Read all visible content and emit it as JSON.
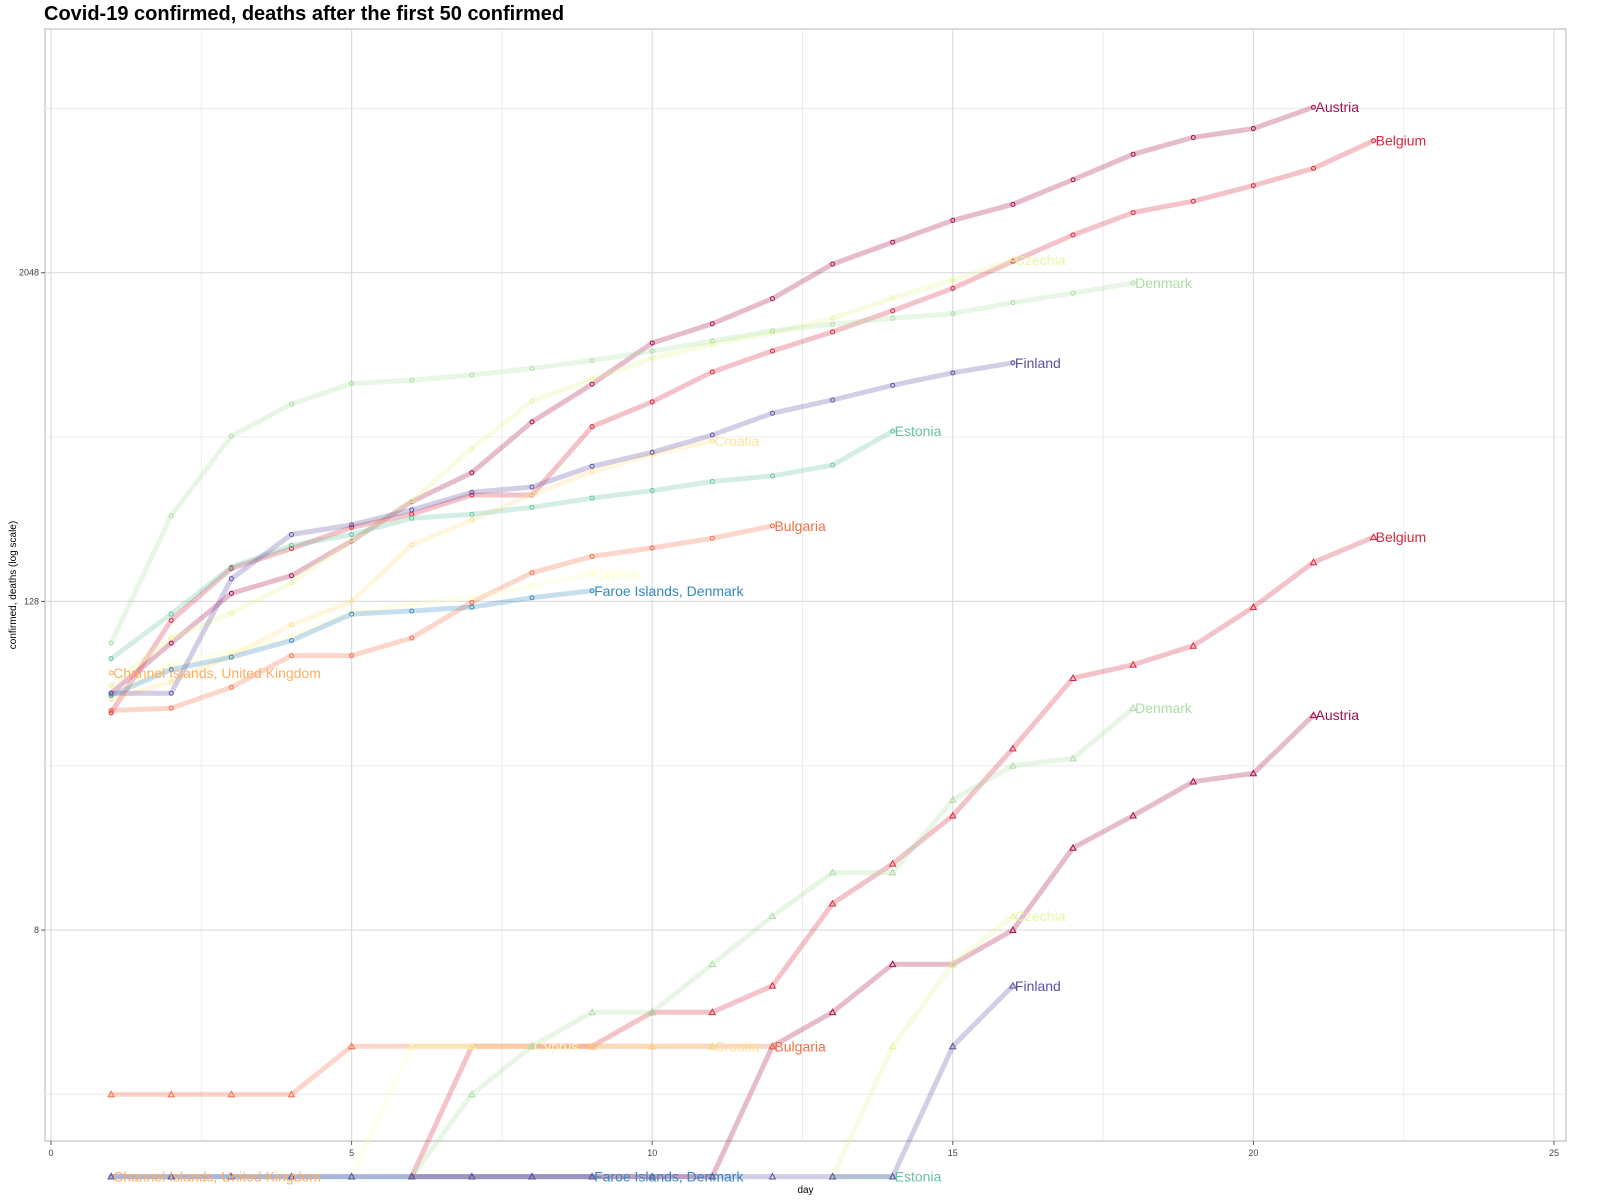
{
  "chart_data": {
    "type": "line",
    "title": "Covid-19 confirmed, deaths  after the first 50 confirmed",
    "xlabel": "day",
    "ylabel": "confirmed, deaths (log scale)",
    "x_scale": "linear",
    "y_scale": "log2",
    "xlim": [
      -0.1,
      25.2
    ],
    "ylim": [
      1.35,
      16000
    ],
    "x_ticks": [
      0,
      5,
      10,
      15,
      20,
      25
    ],
    "x_tick_labels": [
      "0",
      "5",
      "10",
      "15",
      "20",
      "25"
    ],
    "y_ticks": [
      8,
      128,
      2048
    ],
    "y_tick_labels": [
      "8",
      "128",
      "2048"
    ],
    "grid": true,
    "legend": "none (series labelled at line ends)",
    "markers": {
      "confirmed": "circle",
      "deaths": "triangle"
    },
    "series": [
      {
        "name": "Austria",
        "metric": "confirmed",
        "color": "#a50f4c",
        "x": [
          1,
          2,
          3,
          4,
          5,
          6,
          7,
          8,
          9,
          10,
          11,
          12,
          13,
          14,
          15,
          16,
          17,
          18,
          19,
          20,
          21
        ],
        "y": [
          59,
          90,
          137,
          159,
          213,
          297,
          379,
          582,
          800,
          1132,
          1332,
          1646,
          2203,
          2649,
          3184,
          3646,
          4486,
          5560,
          6410,
          6909,
          8271
        ]
      },
      {
        "name": "Belgium",
        "metric": "confirmed",
        "color": "#d7263d",
        "x": [
          1,
          2,
          3,
          4,
          5,
          6,
          7,
          8,
          9,
          10,
          11,
          12,
          13,
          14,
          15,
          16,
          17,
          18,
          19,
          20,
          21,
          22
        ],
        "y": [
          50,
          109,
          169,
          200,
          239,
          267,
          314,
          314,
          559,
          689,
          886,
          1058,
          1243,
          1486,
          1795,
          2257,
          2815,
          3401,
          3743,
          4269,
          4937,
          6235
        ]
      },
      {
        "name": "Bulgaria",
        "metric": "confirmed",
        "color": "#f46d43",
        "x": [
          1,
          2,
          3,
          4,
          5,
          6,
          7,
          8,
          9,
          10,
          11,
          12
        ],
        "y": [
          51,
          52,
          62,
          81,
          81,
          94,
          127,
          163,
          187,
          201,
          218,
          242
        ]
      },
      {
        "name": "Channel Islands, United Kingdom",
        "metric": "confirmed",
        "color": "#fdae61",
        "x": [
          1
        ],
        "y": [
          70
        ]
      },
      {
        "name": "Croatia",
        "metric": "confirmed",
        "color": "#fee08b",
        "x": [
          1,
          2,
          3,
          4,
          5,
          6,
          7,
          8,
          9,
          10,
          11
        ],
        "y": [
          56,
          65,
          81,
          105,
          128,
          206,
          254,
          315,
          382,
          442,
          495
        ]
      },
      {
        "name": "Cyprus",
        "metric": "confirmed",
        "color": "#ffffbf",
        "x": [
          1,
          2,
          3,
          4,
          5,
          6,
          7,
          8,
          9
        ],
        "y": [
          58,
          75,
          84,
          95,
          116,
          124,
          132,
          146,
          162
        ]
      },
      {
        "name": "Czechia",
        "metric": "confirmed",
        "color": "#e6f598",
        "x": [
          1,
          2,
          3,
          4,
          5,
          6,
          7,
          8,
          9,
          10,
          11,
          12,
          13,
          14,
          15,
          16
        ],
        "y": [
          63,
          94,
          116,
          150,
          214,
          298,
          464,
          694,
          833,
          995,
          1120,
          1236,
          1394,
          1654,
          1925,
          2279
        ]
      },
      {
        "name": "Denmark",
        "metric": "confirmed",
        "color": "#abdda4",
        "x": [
          1,
          2,
          3,
          4,
          5,
          6,
          7,
          8,
          9,
          10,
          11,
          12,
          13,
          14,
          15,
          16,
          17,
          18
        ],
        "y": [
          90,
          264,
          516,
          676,
          804,
          827,
          864,
          914,
          977,
          1057,
          1151,
          1255,
          1326,
          1395,
          1450,
          1591,
          1724,
          1877
        ]
      },
      {
        "name": "Estonia",
        "metric": "confirmed",
        "color": "#66c2a5",
        "x": [
          1,
          2,
          3,
          4,
          5,
          6,
          7,
          8,
          9,
          10,
          11,
          12,
          13,
          14
        ],
        "y": [
          79,
          115,
          171,
          205,
          225,
          258,
          267,
          283,
          306,
          326,
          352,
          369,
          404,
          538
        ]
      },
      {
        "name": "Faroe Islands, Denmark",
        "metric": "confirmed",
        "color": "#3288bd",
        "x": [
          1,
          2,
          3,
          4,
          5,
          6,
          7,
          8,
          9
        ],
        "y": [
          58,
          72,
          80,
          92,
          115,
          118,
          122,
          132,
          140
        ]
      },
      {
        "name": "Finland",
        "metric": "confirmed",
        "color": "#5e4fa2",
        "x": [
          1,
          2,
          3,
          4,
          5,
          6,
          7,
          8,
          9,
          10,
          11,
          12,
          13,
          14,
          15,
          16
        ],
        "y": [
          59,
          59,
          155,
          225,
          244,
          277,
          321,
          336,
          400,
          450,
          521,
          626,
          700,
          792,
          880,
          958
        ]
      },
      {
        "name": "Austria",
        "metric": "deaths",
        "color": "#a50f4c",
        "x": [
          6,
          7,
          8,
          9,
          10,
          11,
          12,
          13,
          14,
          15,
          16,
          17,
          18,
          19,
          20,
          21
        ],
        "y": [
          1,
          1,
          1,
          1,
          1,
          1,
          3,
          4,
          6,
          6,
          8,
          16,
          21,
          28,
          30,
          49
        ]
      },
      {
        "name": "Belgium",
        "metric": "deaths",
        "color": "#d7263d",
        "x": [
          6,
          7,
          8,
          9,
          10,
          11,
          12,
          13,
          14,
          15,
          16,
          17,
          18,
          19,
          20,
          21,
          22
        ],
        "y": [
          1,
          3,
          3,
          3,
          4,
          4,
          5,
          10,
          14,
          21,
          37,
          67,
          75,
          88,
          122,
          178,
          220
        ]
      },
      {
        "name": "Bulgaria",
        "metric": "deaths",
        "color": "#f46d43",
        "x": [
          1,
          2,
          3,
          4,
          5,
          6,
          7,
          8,
          9,
          10,
          11,
          12
        ],
        "y": [
          2,
          2,
          2,
          2,
          3,
          3,
          3,
          3,
          3,
          3,
          3,
          3
        ]
      },
      {
        "name": "Channel Islands, United Kingdom",
        "metric": "deaths",
        "color": "#fdae61",
        "x": [
          1
        ],
        "y": [
          1
        ]
      },
      {
        "name": "Croatia",
        "metric": "deaths",
        "color": "#fee08b",
        "x": [
          6,
          7,
          8,
          9,
          10,
          11
        ],
        "y": [
          3,
          3,
          3,
          3,
          3,
          3
        ]
      },
      {
        "name": "Cyprus",
        "metric": "deaths",
        "color": "#ffffbf",
        "x": [
          5,
          6,
          7,
          8
        ],
        "y": [
          1,
          3,
          3,
          3
        ]
      },
      {
        "name": "Czechia",
        "metric": "deaths",
        "color": "#e6f598",
        "x": [
          13,
          14,
          15,
          16
        ],
        "y": [
          1,
          3,
          6,
          9
        ]
      },
      {
        "name": "Denmark",
        "metric": "deaths",
        "color": "#abdda4",
        "x": [
          6,
          7,
          8,
          9,
          10,
          11,
          12,
          13,
          14,
          15,
          16,
          17,
          18
        ],
        "y": [
          1,
          2,
          3,
          4,
          4,
          6,
          9,
          13,
          13,
          24,
          32,
          34,
          52
        ]
      },
      {
        "name": "Estonia",
        "metric": "deaths",
        "color": "#66c2a5",
        "x": [
          13,
          14
        ],
        "y": [
          1,
          1
        ]
      },
      {
        "name": "Faroe Islands, Denmark",
        "metric": "deaths",
        "color": "#3288bd",
        "x": [
          1,
          2,
          3,
          4,
          5,
          6,
          7,
          8,
          9
        ],
        "y": [
          1,
          1,
          1,
          1,
          1,
          1,
          1,
          1,
          1
        ]
      },
      {
        "name": "Finland",
        "metric": "deaths",
        "color": "#5e4fa2",
        "x": [
          1,
          2,
          3,
          4,
          5,
          6,
          7,
          8,
          9,
          10,
          11,
          12,
          13,
          14,
          15,
          16
        ],
        "y": [
          1,
          1,
          1,
          1,
          1,
          1,
          1,
          1,
          1,
          1,
          1,
          1,
          1,
          1,
          3,
          5
        ]
      }
    ]
  }
}
